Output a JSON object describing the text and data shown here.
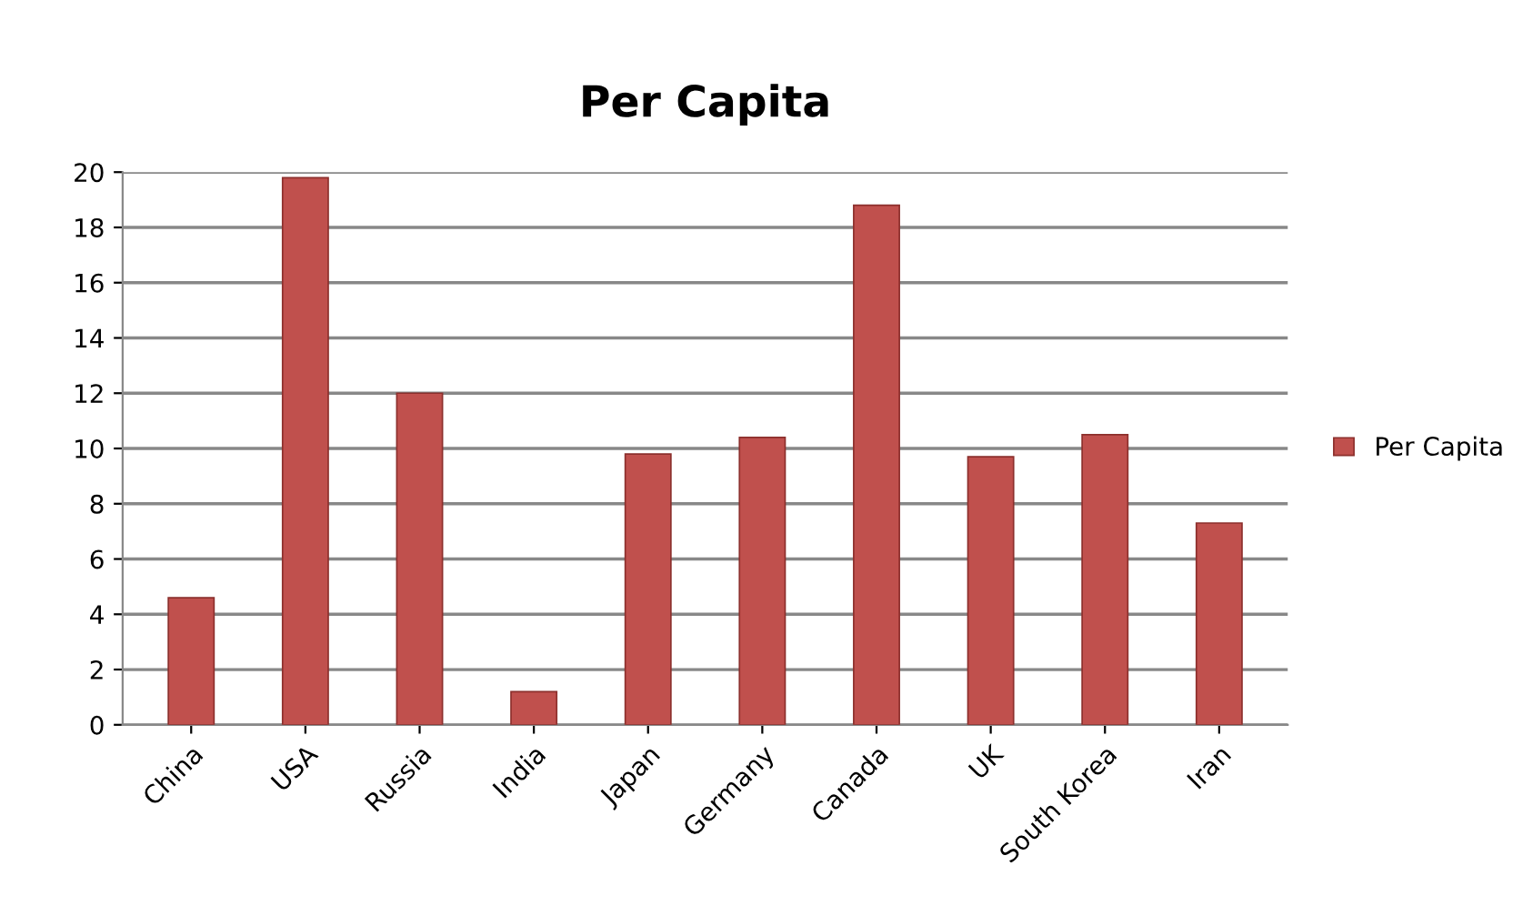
{
  "chart_data": {
    "type": "bar",
    "title": "Per Capita",
    "categories": [
      "China",
      "USA",
      "Russia",
      "India",
      "Japan",
      "Germany",
      "Canada",
      "UK",
      "South Korea",
      "Iran"
    ],
    "series": [
      {
        "name": "Per Capita",
        "color": "#c0504d",
        "values": [
          4.6,
          19.8,
          12.0,
          1.2,
          9.8,
          10.4,
          18.8,
          9.7,
          10.5,
          7.3
        ]
      }
    ],
    "ylim": [
      0,
      20
    ],
    "yticks": [
      0,
      2,
      4,
      6,
      8,
      10,
      12,
      14,
      16,
      18,
      20
    ],
    "grid": "y",
    "legend": "right"
  }
}
